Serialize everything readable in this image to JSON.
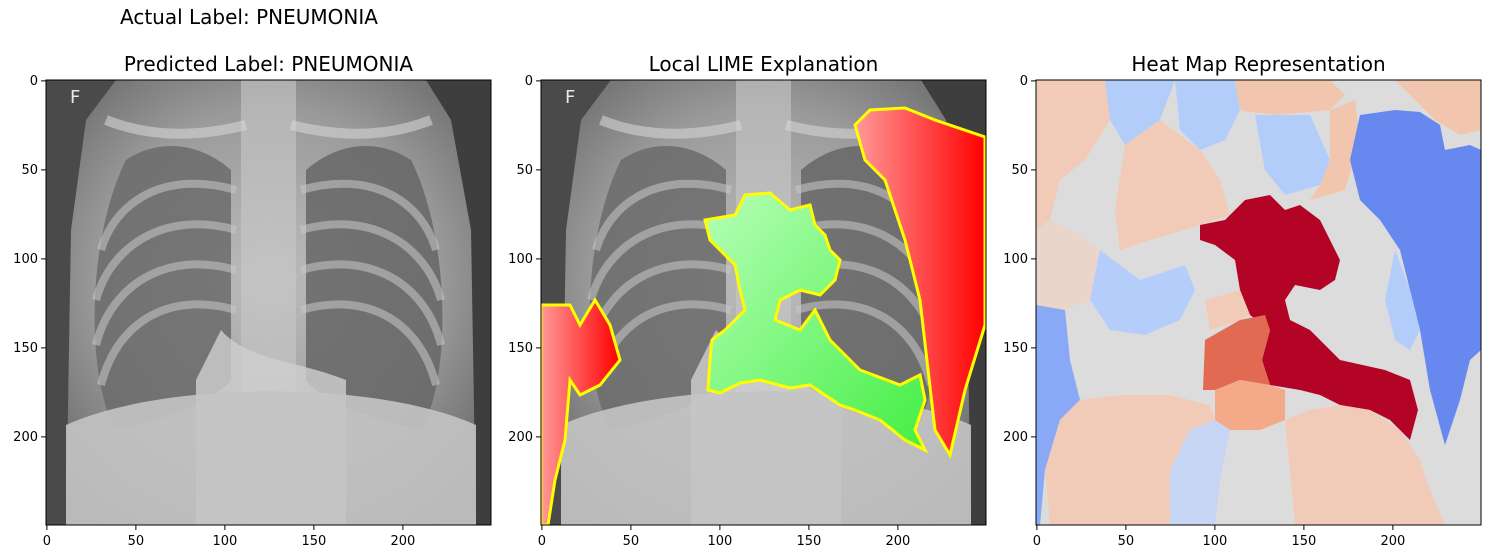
{
  "figure": {
    "suptitle": "Actual Label: PNEUMONIA"
  },
  "chart_data": [
    {
      "type": "image",
      "title": "Predicted Label: PNEUMONIA",
      "xlabel": "",
      "ylabel": "",
      "xlim": [
        0,
        249
      ],
      "ylim": [
        249,
        0
      ],
      "x_ticks": [
        0,
        50,
        100,
        150,
        200
      ],
      "y_ticks": [
        0,
        50,
        100,
        150,
        200
      ],
      "overlay_letter": "F",
      "grid": false
    },
    {
      "type": "image",
      "title": "Local LIME Explanation",
      "xlabel": "",
      "ylabel": "",
      "xlim": [
        0,
        249
      ],
      "ylim": [
        249,
        0
      ],
      "x_ticks": [
        0,
        50,
        100,
        150,
        200
      ],
      "y_ticks": [
        0,
        50,
        100,
        150,
        200
      ],
      "overlay_letter": "F",
      "grid": false,
      "colors": {
        "positive": "#66ff66",
        "negative": "#ff3333",
        "boundary": "#ffff00"
      }
    },
    {
      "type": "heatmap",
      "title": "Heat Map Representation",
      "xlabel": "",
      "ylabel": "",
      "xlim": [
        0,
        249
      ],
      "ylim": [
        249,
        0
      ],
      "x_ticks": [
        0,
        50,
        100,
        150,
        200
      ],
      "y_ticks": [
        0,
        50,
        100,
        150,
        200
      ],
      "grid": false,
      "colormap": "coolwarm"
    }
  ]
}
